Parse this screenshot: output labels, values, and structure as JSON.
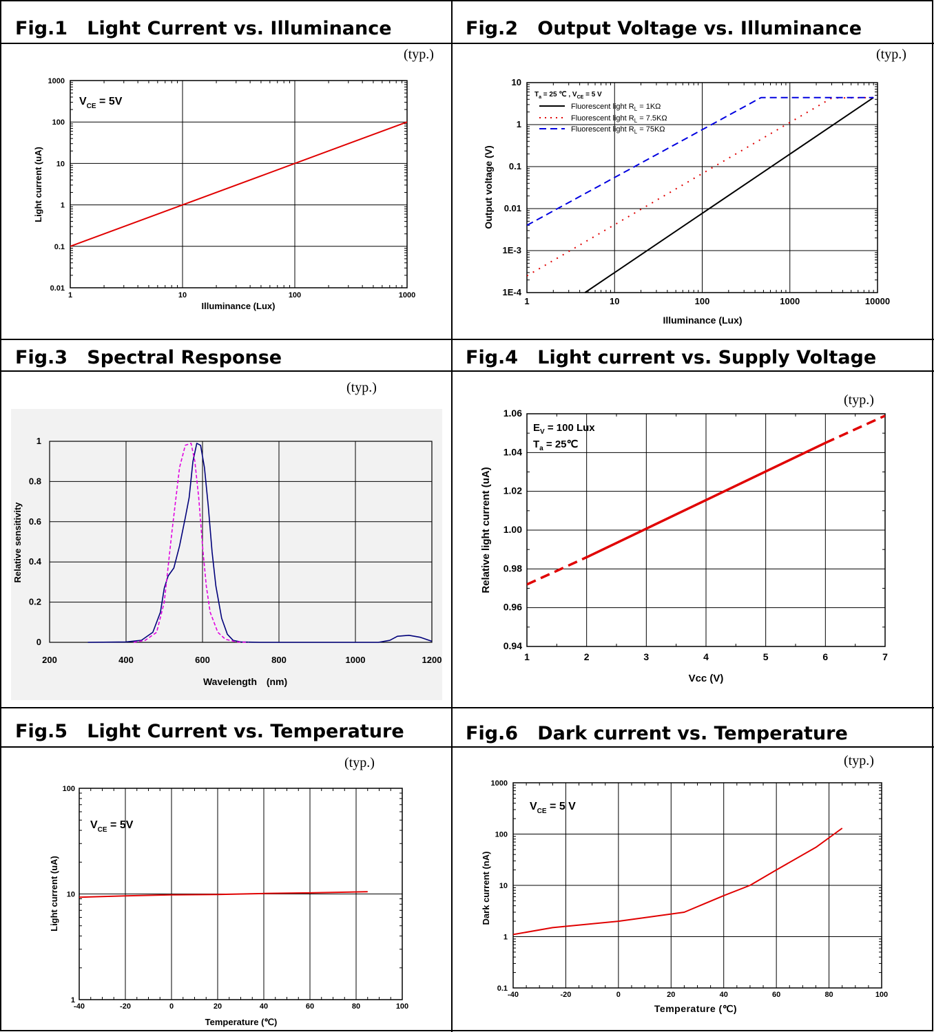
{
  "typ_label": "(typ.)",
  "fig1": {
    "title": "Fig.1   Light Current vs. Illuminance",
    "chart_data": {
      "type": "line",
      "xlabel": "Illuminance (Lux)",
      "ylabel": "Light current (uA)",
      "xscale": "log",
      "yscale": "log",
      "xlim": [
        1,
        1000
      ],
      "ylim": [
        0.01,
        1000
      ],
      "x_ticks": [
        "1",
        "10",
        "100",
        "1000"
      ],
      "y_ticks": [
        "0.01",
        "0.1",
        "1",
        "10",
        "100",
        "1000"
      ],
      "annotation": "V_CE = 5V",
      "grid": true,
      "series": [
        {
          "color": "#e00000",
          "points": [
            [
              1,
              0.1
            ],
            [
              1000,
              100
            ]
          ]
        }
      ]
    }
  },
  "fig2": {
    "title": "Fig.2   Output Voltage vs. Illuminance",
    "chart_data": {
      "type": "line",
      "xlabel": "Illuminance (Lux)",
      "ylabel": "Output voltage (V)",
      "xscale": "log",
      "yscale": "log",
      "xlim": [
        1,
        10000
      ],
      "ylim": [
        0.0001,
        10
      ],
      "x_ticks": [
        "1",
        "10",
        "100",
        "1000",
        "10000"
      ],
      "y_ticks": [
        "1E-4",
        "1E-3",
        "0.01",
        "0.1",
        "1",
        "10"
      ],
      "annotation": "T_a = 25 ℃ , V_CE = 5 V",
      "legend_position": "top-left",
      "grid": true,
      "series": [
        {
          "name": "Fluorescent light  R_L = 1KΩ",
          "color": "#000000",
          "style": "solid",
          "points": [
            [
              4.6,
              0.0001
            ],
            [
              9000,
              4.4
            ]
          ]
        },
        {
          "name": "Fluorescent light  R_L = 7.5KΩ",
          "color": "#e00000",
          "style": "dotted",
          "points": [
            [
              1,
              0.00025
            ],
            [
              3000,
              4.3
            ],
            [
              9000,
              4.4
            ]
          ]
        },
        {
          "name": "Fluorescent light  R_L = 75KΩ",
          "color": "#0000e0",
          "style": "dashed",
          "points": [
            [
              1,
              0.004
            ],
            [
              470,
              4.4
            ],
            [
              9000,
              4.4
            ]
          ]
        }
      ]
    }
  },
  "fig3": {
    "title": "Fig.3   Spectral Response",
    "chart_data": {
      "type": "line",
      "xlabel": "Wavelength",
      "xunit": "(nm)",
      "ylabel": "Relative sensitivity",
      "xlim": [
        200,
        1200
      ],
      "ylim": [
        0,
        1
      ],
      "x_ticks": [
        "200",
        "400",
        "600",
        "800",
        "1000",
        "1200"
      ],
      "y_ticks": [
        "0",
        "0.2",
        "0.4",
        "0.6",
        "0.8",
        "1"
      ],
      "grid": true,
      "series": [
        {
          "color": "#00007a",
          "style": "solid",
          "points": [
            [
              300,
              0
            ],
            [
              400,
              0.002
            ],
            [
              440,
              0.01
            ],
            [
              470,
              0.05
            ],
            [
              490,
              0.15
            ],
            [
              500,
              0.27
            ],
            [
              510,
              0.33
            ],
            [
              525,
              0.37
            ],
            [
              540,
              0.48
            ],
            [
              555,
              0.62
            ],
            [
              565,
              0.72
            ],
            [
              575,
              0.9
            ],
            [
              585,
              0.99
            ],
            [
              595,
              0.98
            ],
            [
              605,
              0.87
            ],
            [
              615,
              0.68
            ],
            [
              625,
              0.45
            ],
            [
              635,
              0.28
            ],
            [
              650,
              0.12
            ],
            [
              665,
              0.04
            ],
            [
              680,
              0.01
            ],
            [
              700,
              0.002
            ],
            [
              750,
              0
            ],
            [
              1060,
              0
            ],
            [
              1090,
              0.01
            ],
            [
              1110,
              0.03
            ],
            [
              1140,
              0.035
            ],
            [
              1170,
              0.025
            ],
            [
              1200,
              0.005
            ]
          ]
        },
        {
          "color": "#e000e0",
          "style": "dashed",
          "points": [
            [
              420,
              0
            ],
            [
              450,
              0.01
            ],
            [
              480,
              0.05
            ],
            [
              500,
              0.2
            ],
            [
              520,
              0.55
            ],
            [
              540,
              0.87
            ],
            [
              555,
              0.98
            ],
            [
              570,
              0.99
            ],
            [
              580,
              0.9
            ],
            [
              590,
              0.72
            ],
            [
              600,
              0.48
            ],
            [
              610,
              0.28
            ],
            [
              620,
              0.15
            ],
            [
              640,
              0.05
            ],
            [
              660,
              0.015
            ],
            [
              690,
              0.002
            ],
            [
              720,
              0
            ]
          ]
        }
      ]
    }
  },
  "fig4": {
    "title": "Fig.4   Light current vs. Supply Voltage",
    "chart_data": {
      "type": "line",
      "xlabel": "Vcc (V)",
      "ylabel": "Relative light current (uA)",
      "xlim": [
        1,
        7
      ],
      "ylim": [
        0.94,
        1.06
      ],
      "x_ticks": [
        "1",
        "2",
        "3",
        "4",
        "5",
        "6",
        "7"
      ],
      "y_ticks": [
        "0.94",
        "0.96",
        "0.98",
        "1.00",
        "1.02",
        "1.04",
        "1.06"
      ],
      "annotation_1": "E_V = 100 Lux",
      "annotation_2": "T_a = 25℃",
      "grid": true,
      "series": [
        {
          "color": "#e00000",
          "style": "dashed",
          "points": [
            [
              1,
              0.972
            ],
            [
              2,
              0.986
            ]
          ]
        },
        {
          "color": "#e00000",
          "style": "solid",
          "points": [
            [
              2,
              0.986
            ],
            [
              6,
              1.045
            ]
          ]
        },
        {
          "color": "#e00000",
          "style": "dashed",
          "points": [
            [
              6,
              1.045
            ],
            [
              7,
              1.059
            ]
          ]
        }
      ]
    }
  },
  "fig5": {
    "title": "Fig.5   Light Current vs. Temperature",
    "chart_data": {
      "type": "line",
      "xlabel": "Temperature (℃)",
      "ylabel": "Light current (uA)",
      "yscale": "log",
      "xlim": [
        -40,
        100
      ],
      "ylim": [
        1,
        100
      ],
      "x_ticks": [
        "-40",
        "-20",
        "0",
        "20",
        "40",
        "60",
        "80",
        "100"
      ],
      "y_ticks": [
        "1",
        "10",
        "100"
      ],
      "annotation": "V_CE = 5V",
      "grid": true,
      "series": [
        {
          "color": "#e00000",
          "points": [
            [
              -40,
              9.3
            ],
            [
              -20,
              9.6
            ],
            [
              0,
              9.8
            ],
            [
              20,
              9.9
            ],
            [
              40,
              10.1
            ],
            [
              60,
              10.25
            ],
            [
              85,
              10.5
            ]
          ]
        }
      ]
    }
  },
  "fig6": {
    "title": "Fig.6   Dark current vs. Temperature",
    "chart_data": {
      "type": "line",
      "xlabel": "Temperature (℃)",
      "ylabel": "Dark current (nA)",
      "yscale": "log",
      "xlim": [
        -40,
        100
      ],
      "ylim": [
        0.1,
        1000
      ],
      "x_ticks": [
        "-40",
        "-20",
        "0",
        "20",
        "40",
        "60",
        "80",
        "100"
      ],
      "y_ticks": [
        "0.1",
        "1",
        "10",
        "100",
        "1000"
      ],
      "annotation": "V_CE = 5 V",
      "grid": true,
      "series": [
        {
          "color": "#e00000",
          "points": [
            [
              -40,
              1.1
            ],
            [
              -25,
              1.5
            ],
            [
              0,
              2
            ],
            [
              25,
              3
            ],
            [
              40,
              6.3
            ],
            [
              50,
              10
            ],
            [
              60,
              20
            ],
            [
              75,
              55
            ],
            [
              85,
              130
            ]
          ]
        }
      ]
    }
  }
}
